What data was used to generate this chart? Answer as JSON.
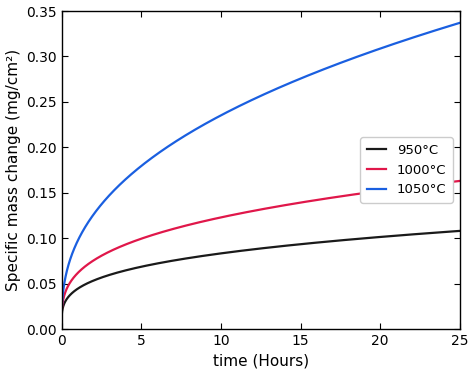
{
  "xlabel": "time (Hours)",
  "ylabel": "Specific mass change (mg/cm²)",
  "xlim": [
    0,
    25
  ],
  "ylim": [
    0.0,
    0.35
  ],
  "xticks": [
    0,
    5,
    10,
    15,
    20,
    25
  ],
  "yticks": [
    0.0,
    0.05,
    0.1,
    0.15,
    0.2,
    0.25,
    0.3,
    0.35
  ],
  "series": [
    {
      "label": "950°C",
      "color": "#1a1a1a",
      "A": 0.005,
      "B": 0.108,
      "n": 0.3
    },
    {
      "label": "1000°C",
      "color": "#e0174a",
      "A": 0.005,
      "B": 0.163,
      "n": 0.32
    },
    {
      "label": "1050°C",
      "color": "#1a5fe0",
      "A": 0.005,
      "B": 0.337,
      "n": 0.4
    }
  ],
  "legend_loc": "center right",
  "linewidth": 1.6,
  "background_color": "#ffffff",
  "axes_color": "#000000",
  "tick_fontsize": 10,
  "label_fontsize": 11,
  "legend_fontsize": 9.5
}
